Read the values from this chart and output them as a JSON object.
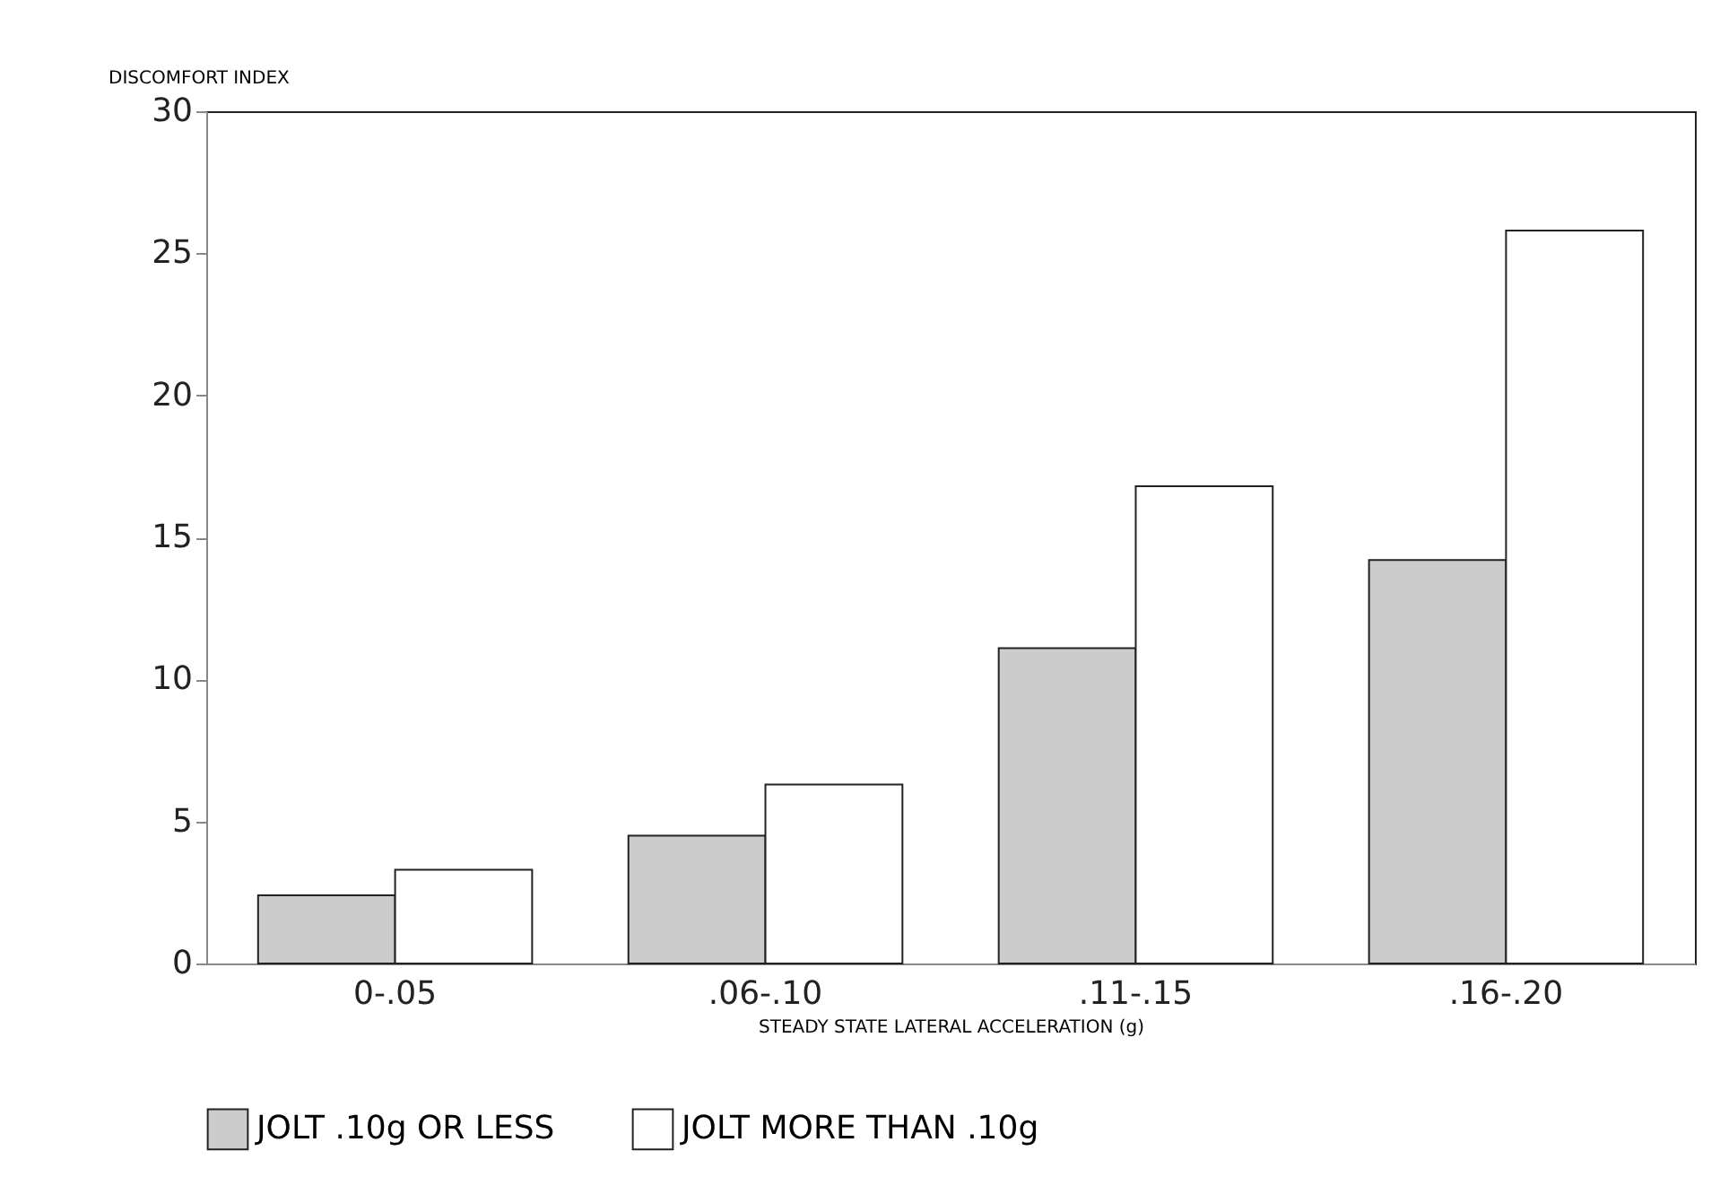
{
  "chart_data": {
    "type": "bar",
    "ylabel": "DISCOMFORT INDEX",
    "xlabel": "STEADY STATE LATERAL ACCELERATION (g)",
    "categories": [
      "0-.05",
      ".06-.10",
      ".11-.15",
      ".16-.20"
    ],
    "series": [
      {
        "name": "JOLT .10g OR LESS",
        "color": "#cccccc",
        "values": [
          2.4,
          4.5,
          11.1,
          14.2
        ]
      },
      {
        "name": "JOLT MORE THAN .10g",
        "color": "#ffffff",
        "values": [
          3.3,
          6.3,
          16.8,
          25.8
        ]
      }
    ],
    "ylim": [
      0,
      30
    ],
    "yticks": [
      0,
      5,
      10,
      15,
      20,
      25,
      30
    ],
    "grid": false,
    "legend": "bottom"
  }
}
